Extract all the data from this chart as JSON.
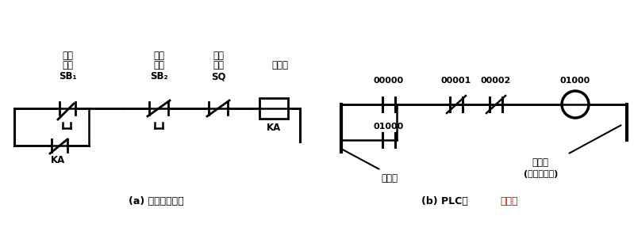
{
  "bg_color": "#ffffff",
  "fig_width": 7.99,
  "fig_height": 2.92,
  "dpi": 100,
  "caption_a": "(a) 继电器控制图",
  "caption_b_black": "(b) PLC的",
  "caption_b_red": "梯形图",
  "label_start1": "启动",
  "label_start2": "按鈕",
  "label_stop1": "停止",
  "label_stop2": "按鈕",
  "label_limit1": "限位",
  "label_limit2": "开关",
  "label_relay": "继电器",
  "label_left_bus": "左母线",
  "label_right_bus": "右母线",
  "label_right_bus2": "(通常可省略)"
}
